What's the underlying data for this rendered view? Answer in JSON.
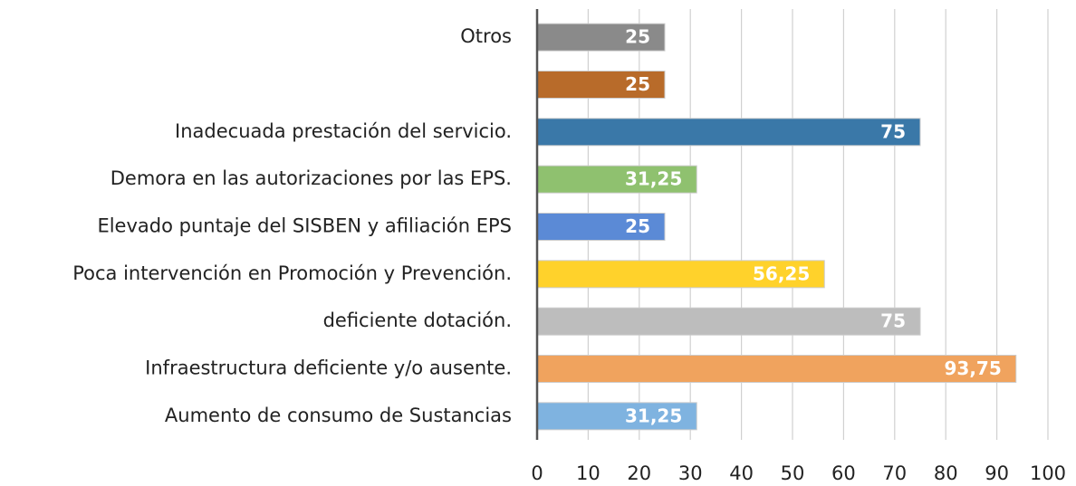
{
  "chart_data": {
    "type": "bar",
    "orientation": "horizontal",
    "categories": [
      "Aumento de consumo de Sustancias",
      "Infraestructura deficiente y/o ausente.",
      "deficiente dotación.",
      "Poca intervención en Promoción y Prevención.",
      "Elevado puntaje del SISBEN y afiliación EPS",
      "Demora en las autorizaciones por las EPS.",
      "Inadecuada prestación del servicio.",
      null,
      "Otros"
    ],
    "values": [
      31.25,
      93.75,
      75,
      56.25,
      25,
      31.25,
      75,
      25,
      25
    ],
    "value_labels": [
      "31,25",
      "93,75",
      "75",
      "56,25",
      "25",
      "31,25",
      "75",
      "25",
      "25"
    ],
    "colors": [
      "#7fb3e0",
      "#f0a35e",
      "#bdbdbd",
      "#ffd22b",
      "#5b8ad6",
      "#8fc16f",
      "#3a78a8",
      "#b86b2a",
      "#8a8a8a"
    ],
    "xlim": [
      0,
      100
    ],
    "xticks": [
      0,
      10,
      20,
      30,
      40,
      50,
      60,
      70,
      80,
      90,
      100
    ],
    "grid": true
  }
}
